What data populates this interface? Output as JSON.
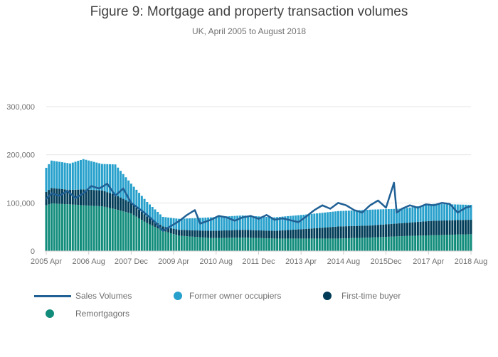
{
  "title": "Figure 9: Mortgage and property transaction volumes",
  "subtitle": "UK, April 2005 to August 2018",
  "colors": {
    "sales": "#206095",
    "former_owner": "#27a0cc",
    "first_time": "#003c57",
    "remortgagors": "#118c7b",
    "grid": "#e6e6e6",
    "axis": "#cccccc"
  },
  "chart_data": {
    "type": "bar",
    "stacked": true,
    "x_start": "2005-04",
    "x_end": "2018-08",
    "x_tick_labels": [
      "2005 Apr",
      "2006 Aug",
      "2007 Dec",
      "2009 Apr",
      "2010 Aug",
      "2011 Dec",
      "2013 Apr",
      "2014 Aug",
      "2015Dec",
      "2017 Apr",
      "2018 Aug"
    ],
    "y_ticks": [
      0,
      100000,
      200000,
      300000
    ],
    "y_tick_labels": [
      "0",
      "100,000",
      "200,000",
      "300,000"
    ],
    "ylim": [
      0,
      300000
    ],
    "grid": true,
    "legend_position": "bottom",
    "series": [
      {
        "name": "Remortgagors",
        "kind": "bar",
        "anchors": [
          [
            "2005-04",
            95000
          ],
          [
            "2005-06",
            99000
          ],
          [
            "2006-01",
            97000
          ],
          [
            "2006-06",
            95000
          ],
          [
            "2007-01",
            93000
          ],
          [
            "2007-06",
            87000
          ],
          [
            "2007-12",
            78000
          ],
          [
            "2008-06",
            58000
          ],
          [
            "2008-12",
            42000
          ],
          [
            "2009-06",
            32000
          ],
          [
            "2010-06",
            27000
          ],
          [
            "2011-06",
            28000
          ],
          [
            "2012-06",
            26000
          ],
          [
            "2013-06",
            26000
          ],
          [
            "2014-06",
            26000
          ],
          [
            "2015-06",
            28000
          ],
          [
            "2016-06",
            31000
          ],
          [
            "2017-06",
            33000
          ],
          [
            "2018-08",
            35000
          ]
        ]
      },
      {
        "name": "First-time buyer",
        "kind": "bar",
        "anchors": [
          [
            "2005-04",
            28000
          ],
          [
            "2005-06",
            32000
          ],
          [
            "2006-01",
            30000
          ],
          [
            "2006-06",
            33000
          ],
          [
            "2007-01",
            33000
          ],
          [
            "2007-06",
            30000
          ],
          [
            "2007-12",
            22000
          ],
          [
            "2008-06",
            14000
          ],
          [
            "2008-12",
            9000
          ],
          [
            "2009-06",
            12000
          ],
          [
            "2010-06",
            15000
          ],
          [
            "2011-06",
            16000
          ],
          [
            "2012-06",
            16000
          ],
          [
            "2013-06",
            20000
          ],
          [
            "2014-06",
            25000
          ],
          [
            "2015-06",
            25000
          ],
          [
            "2016-06",
            27000
          ],
          [
            "2017-06",
            30000
          ],
          [
            "2018-08",
            30000
          ]
        ]
      },
      {
        "name": "Former owner occupiers",
        "kind": "bar",
        "anchors": [
          [
            "2005-04",
            50000
          ],
          [
            "2005-06",
            57000
          ],
          [
            "2006-01",
            55000
          ],
          [
            "2006-06",
            63000
          ],
          [
            "2007-01",
            55000
          ],
          [
            "2007-06",
            63000
          ],
          [
            "2007-12",
            40000
          ],
          [
            "2008-06",
            30000
          ],
          [
            "2008-12",
            20000
          ],
          [
            "2009-06",
            23000
          ],
          [
            "2010-06",
            28000
          ],
          [
            "2011-06",
            30000
          ],
          [
            "2012-06",
            28000
          ],
          [
            "2013-06",
            30000
          ],
          [
            "2014-06",
            32000
          ],
          [
            "2015-06",
            33000
          ],
          [
            "2016-06",
            30000
          ],
          [
            "2017-06",
            35000
          ],
          [
            "2018-08",
            31000
          ]
        ]
      },
      {
        "name": "Sales Volumes",
        "kind": "line",
        "anchors": [
          [
            "2005-04",
            108000
          ],
          [
            "2005-06",
            120000
          ],
          [
            "2005-09",
            115000
          ],
          [
            "2005-12",
            125000
          ],
          [
            "2006-03",
            110000
          ],
          [
            "2006-06",
            120000
          ],
          [
            "2006-09",
            135000
          ],
          [
            "2006-12",
            130000
          ],
          [
            "2007-03",
            140000
          ],
          [
            "2007-06",
            115000
          ],
          [
            "2007-09",
            130000
          ],
          [
            "2007-12",
            100000
          ],
          [
            "2008-03",
            88000
          ],
          [
            "2008-06",
            75000
          ],
          [
            "2008-09",
            60000
          ],
          [
            "2008-12",
            42000
          ],
          [
            "2009-03",
            52000
          ],
          [
            "2009-06",
            62000
          ],
          [
            "2009-09",
            75000
          ],
          [
            "2009-12",
            85000
          ],
          [
            "2010-02",
            57000
          ],
          [
            "2010-06",
            65000
          ],
          [
            "2010-09",
            73000
          ],
          [
            "2010-12",
            70000
          ],
          [
            "2011-03",
            63000
          ],
          [
            "2011-06",
            70000
          ],
          [
            "2011-09",
            73000
          ],
          [
            "2011-12",
            67000
          ],
          [
            "2012-03",
            75000
          ],
          [
            "2012-06",
            65000
          ],
          [
            "2012-09",
            68000
          ],
          [
            "2012-12",
            64000
          ],
          [
            "2013-03",
            60000
          ],
          [
            "2013-06",
            72000
          ],
          [
            "2013-09",
            85000
          ],
          [
            "2013-12",
            95000
          ],
          [
            "2014-03",
            88000
          ],
          [
            "2014-06",
            100000
          ],
          [
            "2014-09",
            95000
          ],
          [
            "2014-12",
            85000
          ],
          [
            "2015-03",
            80000
          ],
          [
            "2015-06",
            95000
          ],
          [
            "2015-09",
            105000
          ],
          [
            "2015-12",
            90000
          ],
          [
            "2016-03",
            142000
          ],
          [
            "2016-04",
            80000
          ],
          [
            "2016-06",
            88000
          ],
          [
            "2016-09",
            95000
          ],
          [
            "2016-12",
            90000
          ],
          [
            "2017-03",
            97000
          ],
          [
            "2017-06",
            95000
          ],
          [
            "2017-09",
            100000
          ],
          [
            "2017-12",
            98000
          ],
          [
            "2018-03",
            80000
          ],
          [
            "2018-06",
            90000
          ],
          [
            "2018-08",
            93000
          ]
        ]
      }
    ]
  },
  "legend": {
    "sales": "Sales Volumes",
    "former_owner": "Former owner occupiers",
    "first_time": "First-time buyer",
    "remortgagors": "Remortgagors"
  }
}
